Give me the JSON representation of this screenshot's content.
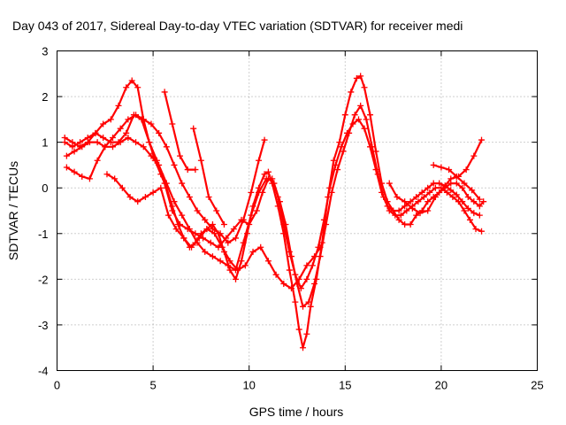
{
  "chart_data": {
    "type": "scatter",
    "title": "Day 043 of 2017, Sidereal Day-to-day VTEC variation (SDTVAR) for receiver medi",
    "xlabel": "GPS time / hours",
    "ylabel": "SDTVAR / TECUs",
    "xlim": [
      0,
      25
    ],
    "ylim": [
      -4,
      3
    ],
    "xticks": [
      "0",
      "5",
      "10",
      "15",
      "20",
      "25"
    ],
    "yticks": [
      "3",
      "2",
      "1",
      "0",
      "-1",
      "-2",
      "-3",
      "-4"
    ],
    "xtick_values": [
      0,
      5,
      10,
      15,
      20,
      25
    ],
    "ytick_values": [
      3,
      2,
      1,
      0,
      -1,
      -2,
      -3,
      -4
    ],
    "grid": true,
    "marker": "plus",
    "color": "#ff0000",
    "series": [
      {
        "x": [
          0.4,
          0.8,
          1.2,
          1.6,
          2.0,
          2.4,
          2.8,
          3.2,
          3.6,
          3.9,
          4.2,
          4.5,
          4.8,
          5.1,
          5.4,
          5.7,
          6.0,
          6.3,
          6.6,
          6.9,
          7.2,
          7.5,
          7.8,
          8.1,
          8.4,
          8.7,
          9.0,
          9.3,
          9.6,
          9.9,
          10.2,
          10.5,
          10.8,
          11.0,
          11.2,
          11.5,
          11.8,
          12.1,
          12.4,
          12.6,
          12.8,
          13.0,
          13.2,
          13.5,
          13.8,
          14.1,
          14.4,
          14.7,
          15.0,
          15.3,
          15.6,
          15.8,
          16.0,
          16.3,
          16.6,
          16.9,
          17.2,
          17.5,
          17.8,
          18.1,
          18.4,
          18.7,
          19.0,
          19.3,
          19.6,
          19.9,
          20.2,
          20.5,
          20.8,
          21.1,
          21.4,
          21.7,
          22.0,
          22.2
        ],
        "y": [
          1.1,
          1.0,
          0.9,
          1.0,
          1.2,
          1.4,
          1.5,
          1.8,
          2.2,
          2.35,
          2.2,
          1.5,
          1.0,
          0.6,
          0.3,
          0.0,
          -0.4,
          -0.8,
          -1.1,
          -1.3,
          -1.2,
          -1.0,
          -0.9,
          -0.8,
          -1.0,
          -1.4,
          -1.8,
          -2.0,
          -1.6,
          -1.0,
          -0.4,
          0.0,
          0.3,
          0.35,
          0.1,
          -0.4,
          -1.0,
          -1.8,
          -2.5,
          -3.1,
          -3.5,
          -3.2,
          -2.6,
          -2.0,
          -1.2,
          -0.2,
          0.6,
          1.0,
          1.6,
          2.1,
          2.4,
          2.45,
          2.2,
          1.6,
          0.8,
          0.1,
          -0.3,
          -0.5,
          -0.7,
          -0.8,
          -0.8,
          -0.6,
          -0.5,
          -0.3,
          -0.2,
          -0.1,
          0.0,
          0.1,
          0.1,
          0.0,
          -0.2,
          -0.3,
          -0.4,
          -0.3
        ]
      },
      {
        "x": [
          0.4,
          0.8,
          1.2,
          1.6,
          2.0,
          2.4,
          2.8,
          3.2,
          3.6,
          4.0,
          4.4,
          4.8,
          5.2,
          5.6,
          6.0,
          6.4,
          6.8,
          7.2,
          7.6,
          8.0,
          8.4,
          8.8,
          9.2,
          9.6,
          10.0,
          10.4,
          10.7,
          11.0,
          11.3,
          11.6,
          11.9,
          12.2,
          12.5,
          12.8,
          13.1,
          13.4,
          13.7,
          14.0,
          14.3,
          14.6,
          14.9,
          15.2,
          15.5,
          15.8,
          16.1,
          16.4,
          16.7,
          17.0,
          17.3,
          17.6,
          17.9,
          18.2,
          18.5,
          18.8,
          19.1,
          19.4,
          19.7,
          20.0,
          20.3,
          20.6,
          20.9,
          21.2,
          21.5,
          21.8,
          22.1
        ],
        "y": [
          1.0,
          0.9,
          1.0,
          1.1,
          1.2,
          1.1,
          1.0,
          1.0,
          1.2,
          1.6,
          1.5,
          1.0,
          0.6,
          0.1,
          -0.5,
          -0.8,
          -0.9,
          -1.0,
          -1.1,
          -1.2,
          -1.3,
          -1.1,
          -0.9,
          -0.7,
          -0.8,
          -0.5,
          -0.1,
          0.2,
          0.1,
          -0.3,
          -0.8,
          -1.5,
          -2.1,
          -2.6,
          -2.5,
          -2.1,
          -1.5,
          -0.8,
          -0.1,
          0.4,
          0.8,
          1.2,
          1.6,
          1.8,
          1.5,
          0.9,
          0.3,
          -0.2,
          -0.5,
          -0.6,
          -0.6,
          -0.5,
          -0.4,
          -0.3,
          -0.2,
          -0.1,
          0.0,
          0.0,
          -0.1,
          -0.2,
          -0.3,
          -0.5,
          -0.7,
          -0.9,
          -0.95
        ]
      },
      {
        "x": [
          0.5,
          0.9,
          1.3,
          1.7,
          2.1,
          2.5,
          2.9,
          3.3,
          3.7,
          4.1,
          4.5,
          4.9,
          5.3,
          5.7,
          6.1,
          6.5,
          6.9,
          7.3,
          7.7,
          8.1,
          8.5,
          8.9,
          9.3,
          9.7,
          10.1,
          10.5,
          10.9,
          11.2,
          11.5,
          11.8,
          12.1,
          12.4,
          12.7,
          13.0,
          13.3,
          13.6,
          13.9,
          14.2,
          14.5,
          14.8,
          15.1,
          15.4,
          15.7,
          16.0,
          16.3,
          16.6,
          16.9,
          17.2,
          17.5,
          17.8,
          18.1,
          18.4,
          18.7,
          19.0,
          19.3,
          19.6,
          19.9,
          20.2,
          20.5,
          20.8,
          21.1,
          21.4,
          21.7,
          22.0
        ],
        "y": [
          0.7,
          0.8,
          0.9,
          1.0,
          1.0,
          0.9,
          0.9,
          1.0,
          1.1,
          1.0,
          0.9,
          0.7,
          0.5,
          0.1,
          -0.3,
          -0.6,
          -0.9,
          -1.2,
          -1.4,
          -1.5,
          -1.6,
          -1.7,
          -1.8,
          -1.2,
          -0.6,
          -0.1,
          0.2,
          0.2,
          -0.2,
          -0.8,
          -1.4,
          -1.9,
          -2.2,
          -2.0,
          -1.7,
          -1.3,
          -0.7,
          0.0,
          0.5,
          0.9,
          1.2,
          1.4,
          1.5,
          1.3,
          0.9,
          0.4,
          -0.1,
          -0.4,
          -0.5,
          -0.5,
          -0.4,
          -0.3,
          -0.2,
          -0.1,
          0.0,
          0.1,
          0.1,
          0.05,
          -0.05,
          -0.15,
          -0.3,
          -0.45,
          -0.55,
          -0.6
        ]
      },
      {
        "x": [
          0.5,
          0.9,
          1.3,
          1.7,
          2.1,
          2.5,
          2.9,
          3.3,
          3.7,
          4.1,
          4.5,
          4.9,
          5.3,
          5.7,
          6.1,
          6.5,
          6.9,
          7.3,
          7.7,
          8.1,
          8.5,
          8.9,
          9.3,
          9.7,
          10.1,
          10.5,
          10.8
        ],
        "y": [
          0.45,
          0.35,
          0.25,
          0.2,
          0.6,
          0.9,
          1.1,
          1.3,
          1.5,
          1.6,
          1.5,
          1.4,
          1.2,
          0.9,
          0.5,
          0.1,
          -0.2,
          -0.5,
          -0.7,
          -0.9,
          -1.0,
          -1.2,
          -1.1,
          -0.7,
          -0.1,
          0.6,
          1.05
        ]
      },
      {
        "x": [
          2.6,
          3.0,
          3.4,
          3.8,
          4.2,
          4.6,
          5.0,
          5.4,
          5.8,
          6.2,
          6.6,
          7.0,
          7.4,
          7.8,
          8.2,
          8.6,
          9.0,
          9.4,
          9.8,
          10.2,
          10.6,
          11.0,
          11.4,
          11.8,
          12.2,
          12.6,
          13.0,
          13.4,
          13.7
        ],
        "y": [
          0.3,
          0.2,
          0.0,
          -0.2,
          -0.3,
          -0.2,
          -0.1,
          0.0,
          -0.6,
          -0.9,
          -1.1,
          -1.3,
          -1.1,
          -0.9,
          -1.0,
          -1.3,
          -1.6,
          -1.8,
          -1.7,
          -1.4,
          -1.3,
          -1.6,
          -1.9,
          -2.1,
          -2.2,
          -2.0,
          -1.7,
          -1.5,
          -1.3
        ]
      },
      {
        "x": [
          5.6,
          6.0,
          6.4,
          6.8,
          7.2
        ],
        "y": [
          2.1,
          1.4,
          0.7,
          0.4,
          0.4
        ]
      },
      {
        "x": [
          7.1,
          7.5,
          7.9,
          8.3,
          8.7
        ],
        "y": [
          1.3,
          0.6,
          -0.2,
          -0.5,
          -0.8
        ]
      },
      {
        "x": [
          17.3,
          17.7,
          18.1,
          18.5,
          18.9,
          19.3,
          19.7,
          20.1,
          20.5,
          20.9,
          21.3,
          21.7,
          22.1
        ],
        "y": [
          0.1,
          -0.2,
          -0.3,
          -0.45,
          -0.55,
          -0.5,
          -0.2,
          0.0,
          0.2,
          0.25,
          0.4,
          0.7,
          1.05
        ]
      },
      {
        "x": [
          19.6,
          20.0,
          20.4,
          20.8,
          21.2,
          21.6,
          22.0
        ],
        "y": [
          0.5,
          0.45,
          0.4,
          0.25,
          0.1,
          -0.05,
          -0.25
        ]
      }
    ]
  }
}
